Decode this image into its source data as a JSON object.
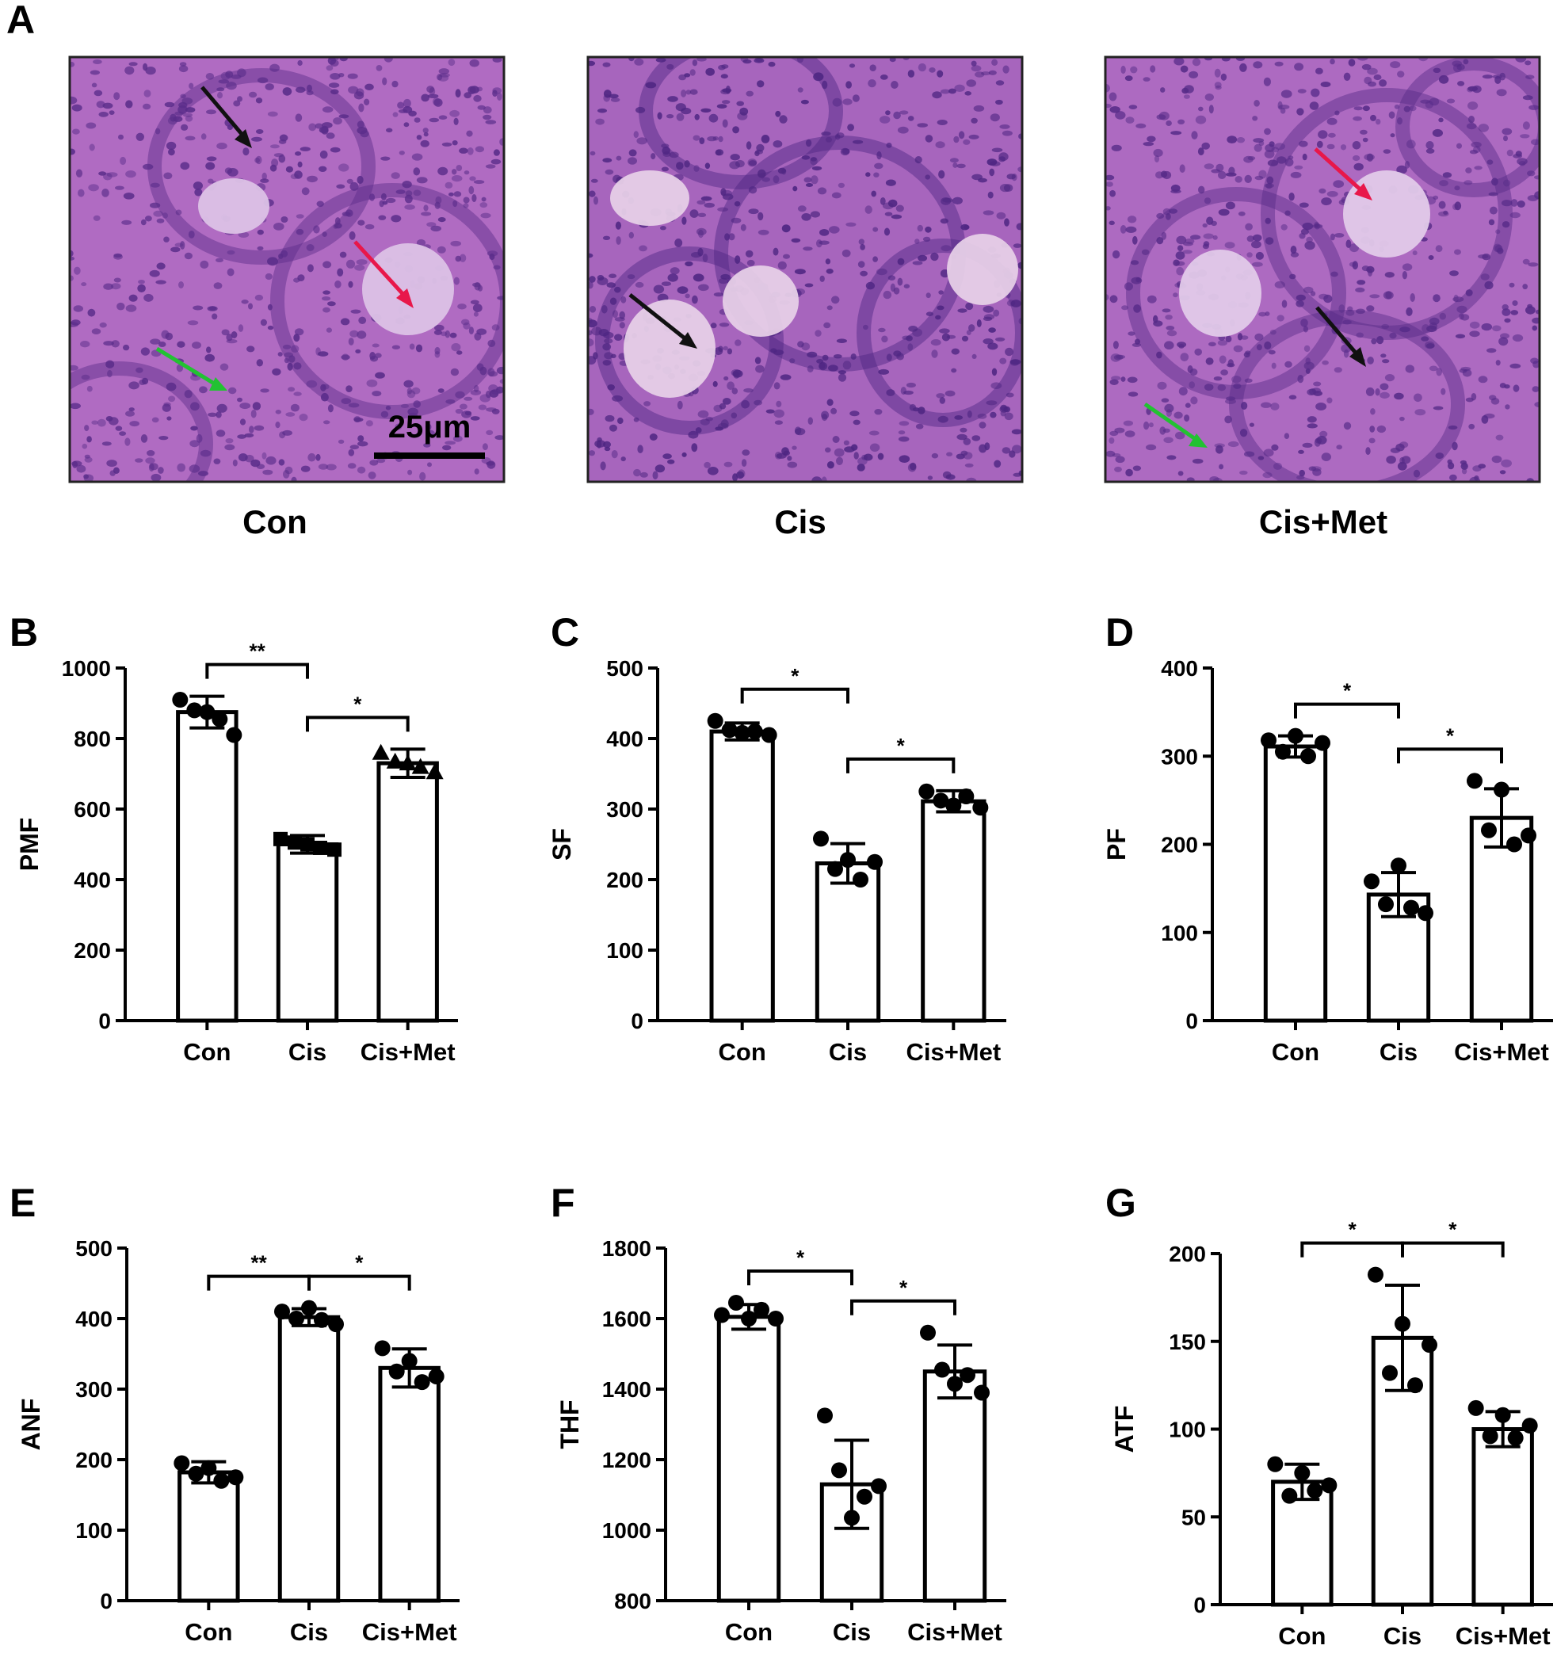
{
  "panel_a": {
    "label": "A",
    "scale_bar_text": "25μm",
    "images": [
      {
        "caption": "Con",
        "colors": {
          "tissue": "#b06bc2",
          "cells": "#5a2d8a",
          "light": "#dcc2e6"
        }
      },
      {
        "caption": "Cis",
        "colors": {
          "tissue": "#a765bd",
          "cells": "#4e2682",
          "light": "#e6cfe7"
        }
      },
      {
        "caption": "Cis+Met",
        "colors": {
          "tissue": "#ad6ac1",
          "cells": "#562b88",
          "light": "#e2cae9"
        }
      }
    ],
    "arrow_colors": {
      "black": "#111111",
      "red": "#e8174a",
      "green": "#22c232"
    }
  },
  "chart_data": [
    {
      "panel": "B",
      "type": "bar",
      "ylabel": "PMF",
      "categories": [
        "Con",
        "Cis",
        "Cis+Met"
      ],
      "values": [
        875,
        500,
        730
      ],
      "errors": [
        45,
        25,
        40
      ],
      "ylim": [
        0,
        1000
      ],
      "yticks": [
        0,
        200,
        400,
        600,
        800,
        1000
      ],
      "points": [
        [
          910,
          880,
          875,
          855,
          810
        ],
        [
          515,
          505,
          500,
          490,
          485
        ],
        [
          760,
          735,
          730,
          720,
          705
        ]
      ],
      "markers": [
        "circle",
        "square",
        "triangle"
      ],
      "comparisons": [
        {
          "from": 0,
          "to": 1,
          "label": "**"
        },
        {
          "from": 1,
          "to": 2,
          "label": "*"
        }
      ]
    },
    {
      "panel": "C",
      "type": "bar",
      "ylabel": "SF",
      "categories": [
        "Con",
        "Cis",
        "Cis+Met"
      ],
      "values": [
        410,
        223,
        311
      ],
      "errors": [
        12,
        28,
        15
      ],
      "ylim": [
        0,
        500
      ],
      "yticks": [
        0,
        100,
        200,
        300,
        400,
        500
      ],
      "points": [
        [
          425,
          412,
          408,
          410,
          405
        ],
        [
          258,
          215,
          228,
          200,
          225
        ],
        [
          325,
          312,
          305,
          318,
          302
        ]
      ],
      "markers": [
        "circle",
        "circle",
        "circle"
      ],
      "comparisons": [
        {
          "from": 0,
          "to": 1,
          "label": "*"
        },
        {
          "from": 1,
          "to": 2,
          "label": "*"
        }
      ]
    },
    {
      "panel": "D",
      "type": "bar",
      "ylabel": "PF",
      "categories": [
        "Con",
        "Cis",
        "Cis+Met"
      ],
      "values": [
        311,
        143,
        230
      ],
      "errors": [
        12,
        25,
        33
      ],
      "ylim": [
        0,
        400
      ],
      "yticks": [
        0,
        100,
        200,
        300,
        400
      ],
      "points": [
        [
          318,
          305,
          323,
          300,
          315
        ],
        [
          158,
          132,
          176,
          128,
          122
        ],
        [
          272,
          216,
          262,
          200,
          210
        ]
      ],
      "markers": [
        "circle",
        "circle",
        "circle"
      ],
      "comparisons": [
        {
          "from": 0,
          "to": 1,
          "label": "*"
        },
        {
          "from": 1,
          "to": 2,
          "label": "*"
        }
      ]
    },
    {
      "panel": "E",
      "type": "bar",
      "ylabel": "ANF",
      "categories": [
        "Con",
        "Cis",
        "Cis+Met"
      ],
      "values": [
        182,
        402,
        330
      ],
      "errors": [
        15,
        12,
        27
      ],
      "ylim": [
        0,
        500
      ],
      "yticks": [
        0,
        100,
        200,
        300,
        400,
        500
      ],
      "points": [
        [
          195,
          180,
          188,
          170,
          175
        ],
        [
          410,
          400,
          415,
          398,
          392
        ],
        [
          358,
          325,
          340,
          310,
          318
        ]
      ],
      "markers": [
        "circle",
        "circle",
        "circle"
      ],
      "comparisons": [
        {
          "from": 0,
          "to": 1,
          "label": "**"
        },
        {
          "from": 1,
          "to": 2,
          "label": "*"
        }
      ]
    },
    {
      "panel": "F",
      "type": "bar",
      "ylabel": "THF",
      "categories": [
        "Con",
        "Cis",
        "Cis+Met"
      ],
      "values": [
        1605,
        1130,
        1450
      ],
      "errors": [
        35,
        125,
        75
      ],
      "ylim": [
        800,
        1800
      ],
      "yticks": [
        800,
        1000,
        1200,
        1400,
        1600,
        1800
      ],
      "points": [
        [
          1610,
          1645,
          1600,
          1625,
          1600
        ],
        [
          1325,
          1170,
          1035,
          1095,
          1125
        ],
        [
          1560,
          1455,
          1415,
          1440,
          1390
        ]
      ],
      "markers": [
        "circle",
        "circle",
        "circle"
      ],
      "comparisons": [
        {
          "from": 0,
          "to": 1,
          "label": "*"
        },
        {
          "from": 1,
          "to": 2,
          "label": "*"
        }
      ]
    },
    {
      "panel": "G",
      "type": "bar",
      "ylabel": "ATF",
      "categories": [
        "Con",
        "Cis",
        "Cis+Met"
      ],
      "values": [
        70,
        152,
        100
      ],
      "errors": [
        10,
        30,
        10
      ],
      "ylim": [
        0,
        200
      ],
      "yticks": [
        0,
        50,
        100,
        150,
        200
      ],
      "points": [
        [
          80,
          62,
          75,
          65,
          68
        ],
        [
          188,
          132,
          160,
          125,
          148
        ],
        [
          112,
          96,
          108,
          95,
          102
        ]
      ],
      "markers": [
        "circle",
        "circle",
        "circle"
      ],
      "comparisons": [
        {
          "from": 0,
          "to": 1,
          "label": "*"
        },
        {
          "from": 1,
          "to": 2,
          "label": "*"
        }
      ]
    }
  ]
}
